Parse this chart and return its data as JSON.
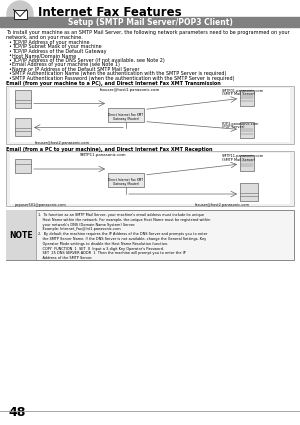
{
  "title": "Internet Fax Features",
  "subtitle": "Setup (SMTP Mail Server/POP3 Client)",
  "page_number": "48",
  "bg_color": "#ffffff",
  "header_circle_color": "#c8c8c8",
  "subtitle_bg": "#808080",
  "intro_line1": "To install your machine as an SMTP Mail Server, the following network parameters need to be programmed on your",
  "intro_line2": "network, and on your machine.",
  "bullets": [
    "TCP/IP Address of your machine",
    "TCP/IP Subnet Mask of your machine",
    "TCP/IP Address of the Default Gateway",
    "Host Name/Domain Name",
    "TCP/IP Address of the DNS Server (if not available, see Note 2)",
    "Email Address of your machine (see Note 1)",
    "Name or IP Address of the Default SMTP Mail Server",
    "SMTP Authentication Name (when the authentication with the SMTP Server is required)",
    "SMTP Authentication Password (when the authentication with the SMTP Server is required)"
  ],
  "diag1_title": "Email (from your machine to a PC), and Direct Internet Fax XMT Transmission",
  "diag2_title": "Email (from a PC to your machine), and Direct Internet Fax XMT Reception",
  "diag1_top_label": "faxuser@host1.panasonic.com",
  "diag1_smtp_label1": "SMTP01.panasonic.com",
  "diag1_smtp_label2": "(SMTP Mail Server)",
  "diag1_gw_label1": "Direct Internet Fax XMT",
  "diag1_gw_label2": "Gateway (Router)",
  "diag1_pop_label1": "POP3.panasonic.com",
  "diag1_pop_label2": "(POP Server)",
  "diag1_bottom_label": "faxuser@host2.panasonic.com",
  "diag2_top_label": "SMTP11.panasonic.com",
  "diag2_smtp_label1": "SMTP11.panasonic.com",
  "diag2_smtp_label2": "(SMTP Mail Server)",
  "diag2_gw_label1": "Direct Internet Fax XMT",
  "diag2_gw_label2": "Gateway (Router)",
  "diag2_bottom_label1": "popuser501@panasonic.com",
  "diag2_bottom_label2": "faxuser@host2.panasonic.com",
  "note_title": "NOTE",
  "note_text": [
    "1.  To function as an SMTP Mail Server, your machine's email address must include its unique",
    "    Host Name within the network. For example, the unique Host Name must be registered within",
    "    your network's DNS (Domain Name System) Server.",
    "    Example: Internet_Fax@Int1.panasonic.com",
    "2.  By default the machine requires the IP Address of the DNS Server and prompts you to enter",
    "    the SMTP Server Name. If the DNS Server is not available, change the General Settings, Key",
    "    Operator Mode settings to disable the Host Name Resolution function.",
    "    COPY  FUNCTION  1  SET  0  Input a 3-digit Key Operator's Password.",
    "    SET  25 DNS SERVER ADDR  1  Then the machine will prompt you to enter the IP",
    "    Address of the SMTP Server."
  ],
  "icon_color": "#dddddd",
  "icon_edge": "#666666",
  "line_color": "#666666",
  "diag_bg": "#f0f0f0",
  "diag_border": "#aaaaaa",
  "note_bg": "#f5f5f5",
  "note_border": "#888888",
  "note_label_bg": "#d8d8d8"
}
